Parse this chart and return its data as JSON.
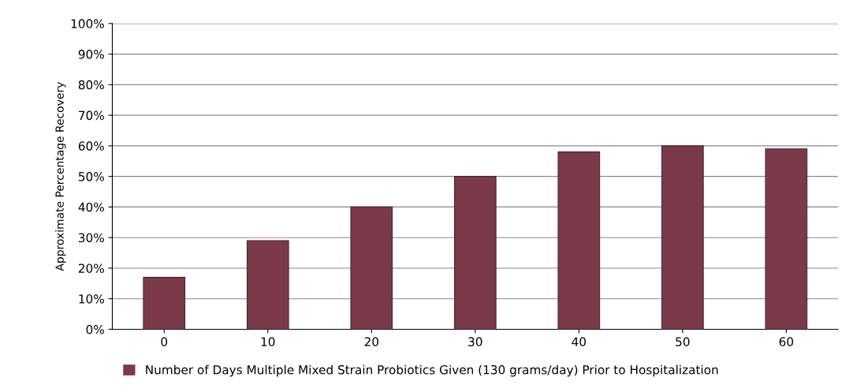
{
  "chart_data": {
    "type": "bar",
    "ylabel": "Approximate Percentage Recovery",
    "categories": [
      "0",
      "10",
      "20",
      "30",
      "40",
      "50",
      "60"
    ],
    "series": [
      {
        "name": "Number of Days Multiple Mixed Strain Probiotics Given (130 grams/day) Prior to Hospitalization",
        "color": "#7b3a4a",
        "values": [
          17,
          29,
          40,
          50,
          58,
          60,
          59
        ]
      }
    ],
    "ylim": [
      0,
      100
    ],
    "yticks": [
      {
        "value": 0,
        "label": "0%"
      },
      {
        "value": 10,
        "label": "10%"
      },
      {
        "value": 20,
        "label": "20%"
      },
      {
        "value": 30,
        "label": "30%"
      },
      {
        "value": 40,
        "label": "40%"
      },
      {
        "value": 50,
        "label": "50%"
      },
      {
        "value": 60,
        "label": "60%"
      },
      {
        "value": 70,
        "label": "70%"
      },
      {
        "value": 80,
        "label": "80%"
      },
      {
        "value": 90,
        "label": "90%"
      },
      {
        "value": 100,
        "label": "100%"
      }
    ],
    "grid": "y",
    "legend": "bottom"
  }
}
